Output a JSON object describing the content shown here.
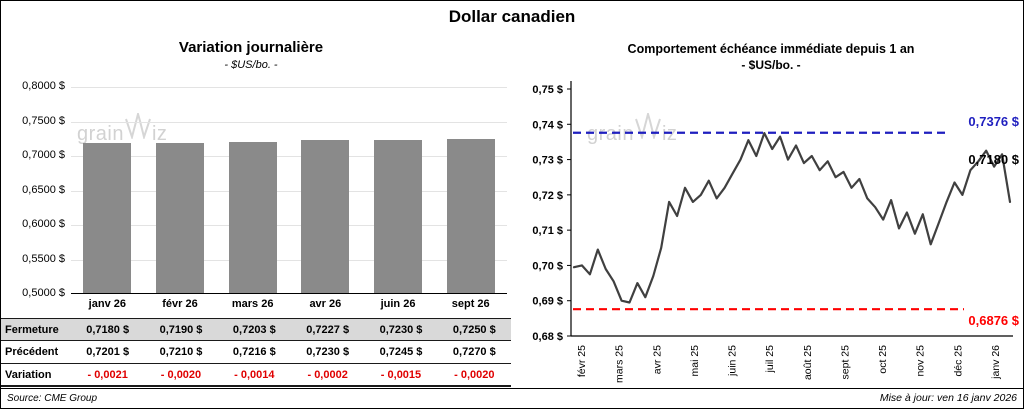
{
  "page": {
    "title": "Dollar canadien",
    "source": "Source: CME Group",
    "updated": "Mise à jour: ven 16 janv 2026",
    "watermark_pre": "grain",
    "watermark_post": "iz",
    "watermark_icon": "zigzag-w-icon"
  },
  "chart_data": [
    {
      "type": "bar",
      "title": "Variation  journalière",
      "subtitle": "- $US/bo. -",
      "categories": [
        "janv 26",
        "févr 26",
        "mars 26",
        "avr 26",
        "juin 26",
        "sept 26"
      ],
      "values": [
        0.718,
        0.719,
        0.7203,
        0.7227,
        0.723,
        0.725
      ],
      "ylim": [
        0.5,
        0.8
      ],
      "ytick_labels": [
        "0,8000 $",
        "0,7500 $",
        "0,7000 $",
        "0,6500 $",
        "0,6000 $",
        "0,5500 $",
        "0,5000 $"
      ],
      "bar_color": "#8a8a8a",
      "grid": true,
      "legend": "none"
    },
    {
      "type": "line",
      "title": "Comportement échéance immédiate depuis 1 an",
      "subtitle": "- $US/bo. -",
      "x_labels": [
        "févr 25",
        "mars 25",
        "avr 25",
        "mai 25",
        "juin 25",
        "juil 25",
        "août 25",
        "sept 25",
        "oct 25",
        "nov 25",
        "déc 25",
        "janv 26"
      ],
      "values": [
        0.6995,
        0.7,
        0.6975,
        0.7045,
        0.699,
        0.6955,
        0.69,
        0.6895,
        0.695,
        0.691,
        0.697,
        0.705,
        0.718,
        0.714,
        0.722,
        0.718,
        0.72,
        0.724,
        0.719,
        0.722,
        0.726,
        0.73,
        0.7355,
        0.731,
        0.7375,
        0.733,
        0.7365,
        0.73,
        0.734,
        0.729,
        0.731,
        0.727,
        0.7295,
        0.725,
        0.7265,
        0.722,
        0.7245,
        0.719,
        0.7165,
        0.713,
        0.7185,
        0.7105,
        0.715,
        0.709,
        0.7145,
        0.706,
        0.712,
        0.718,
        0.7235,
        0.72,
        0.727,
        0.7295,
        0.7325,
        0.728,
        0.7315,
        0.718
      ],
      "ylim": [
        0.68,
        0.75
      ],
      "ytick_labels": [
        "0,75 $",
        "0,74 $",
        "0,73 $",
        "0,72 $",
        "0,71 $",
        "0,70 $",
        "0,69 $",
        "0,68 $"
      ],
      "reference_lines": [
        {
          "value": 0.7376,
          "label": "0,7376 $",
          "color": "#1f1fbf",
          "style": "dashed"
        },
        {
          "value": 0.6876,
          "label": "0,6876 $",
          "color": "#ff0000",
          "style": "dashed"
        }
      ],
      "last_label": {
        "value": 0.718,
        "label": "0,7180 $",
        "color": "#000000"
      },
      "line_color": "#404040",
      "grid": false,
      "legend": "none"
    }
  ],
  "table": {
    "columns": [
      "janv 26",
      "févr 26",
      "mars 26",
      "avr 26",
      "juin 26",
      "sept 26"
    ],
    "rows": [
      {
        "label": "Fermeture",
        "style": "gray",
        "values": [
          "0,7180  $",
          "0,7190  $",
          "0,7203  $",
          "0,7227  $",
          "0,7230  $",
          "0,7250  $"
        ]
      },
      {
        "label": "Précédent",
        "style": "white",
        "values": [
          "0,7201  $",
          "0,7210  $",
          "0,7216  $",
          "0,7230  $",
          "0,7245  $",
          "0,7270  $"
        ]
      },
      {
        "label": "Variation",
        "style": "red",
        "values": [
          "- 0,0021",
          "- 0,0020",
          "- 0,0014",
          "- 0,0002",
          "- 0,0015",
          "- 0,0020"
        ]
      }
    ]
  }
}
